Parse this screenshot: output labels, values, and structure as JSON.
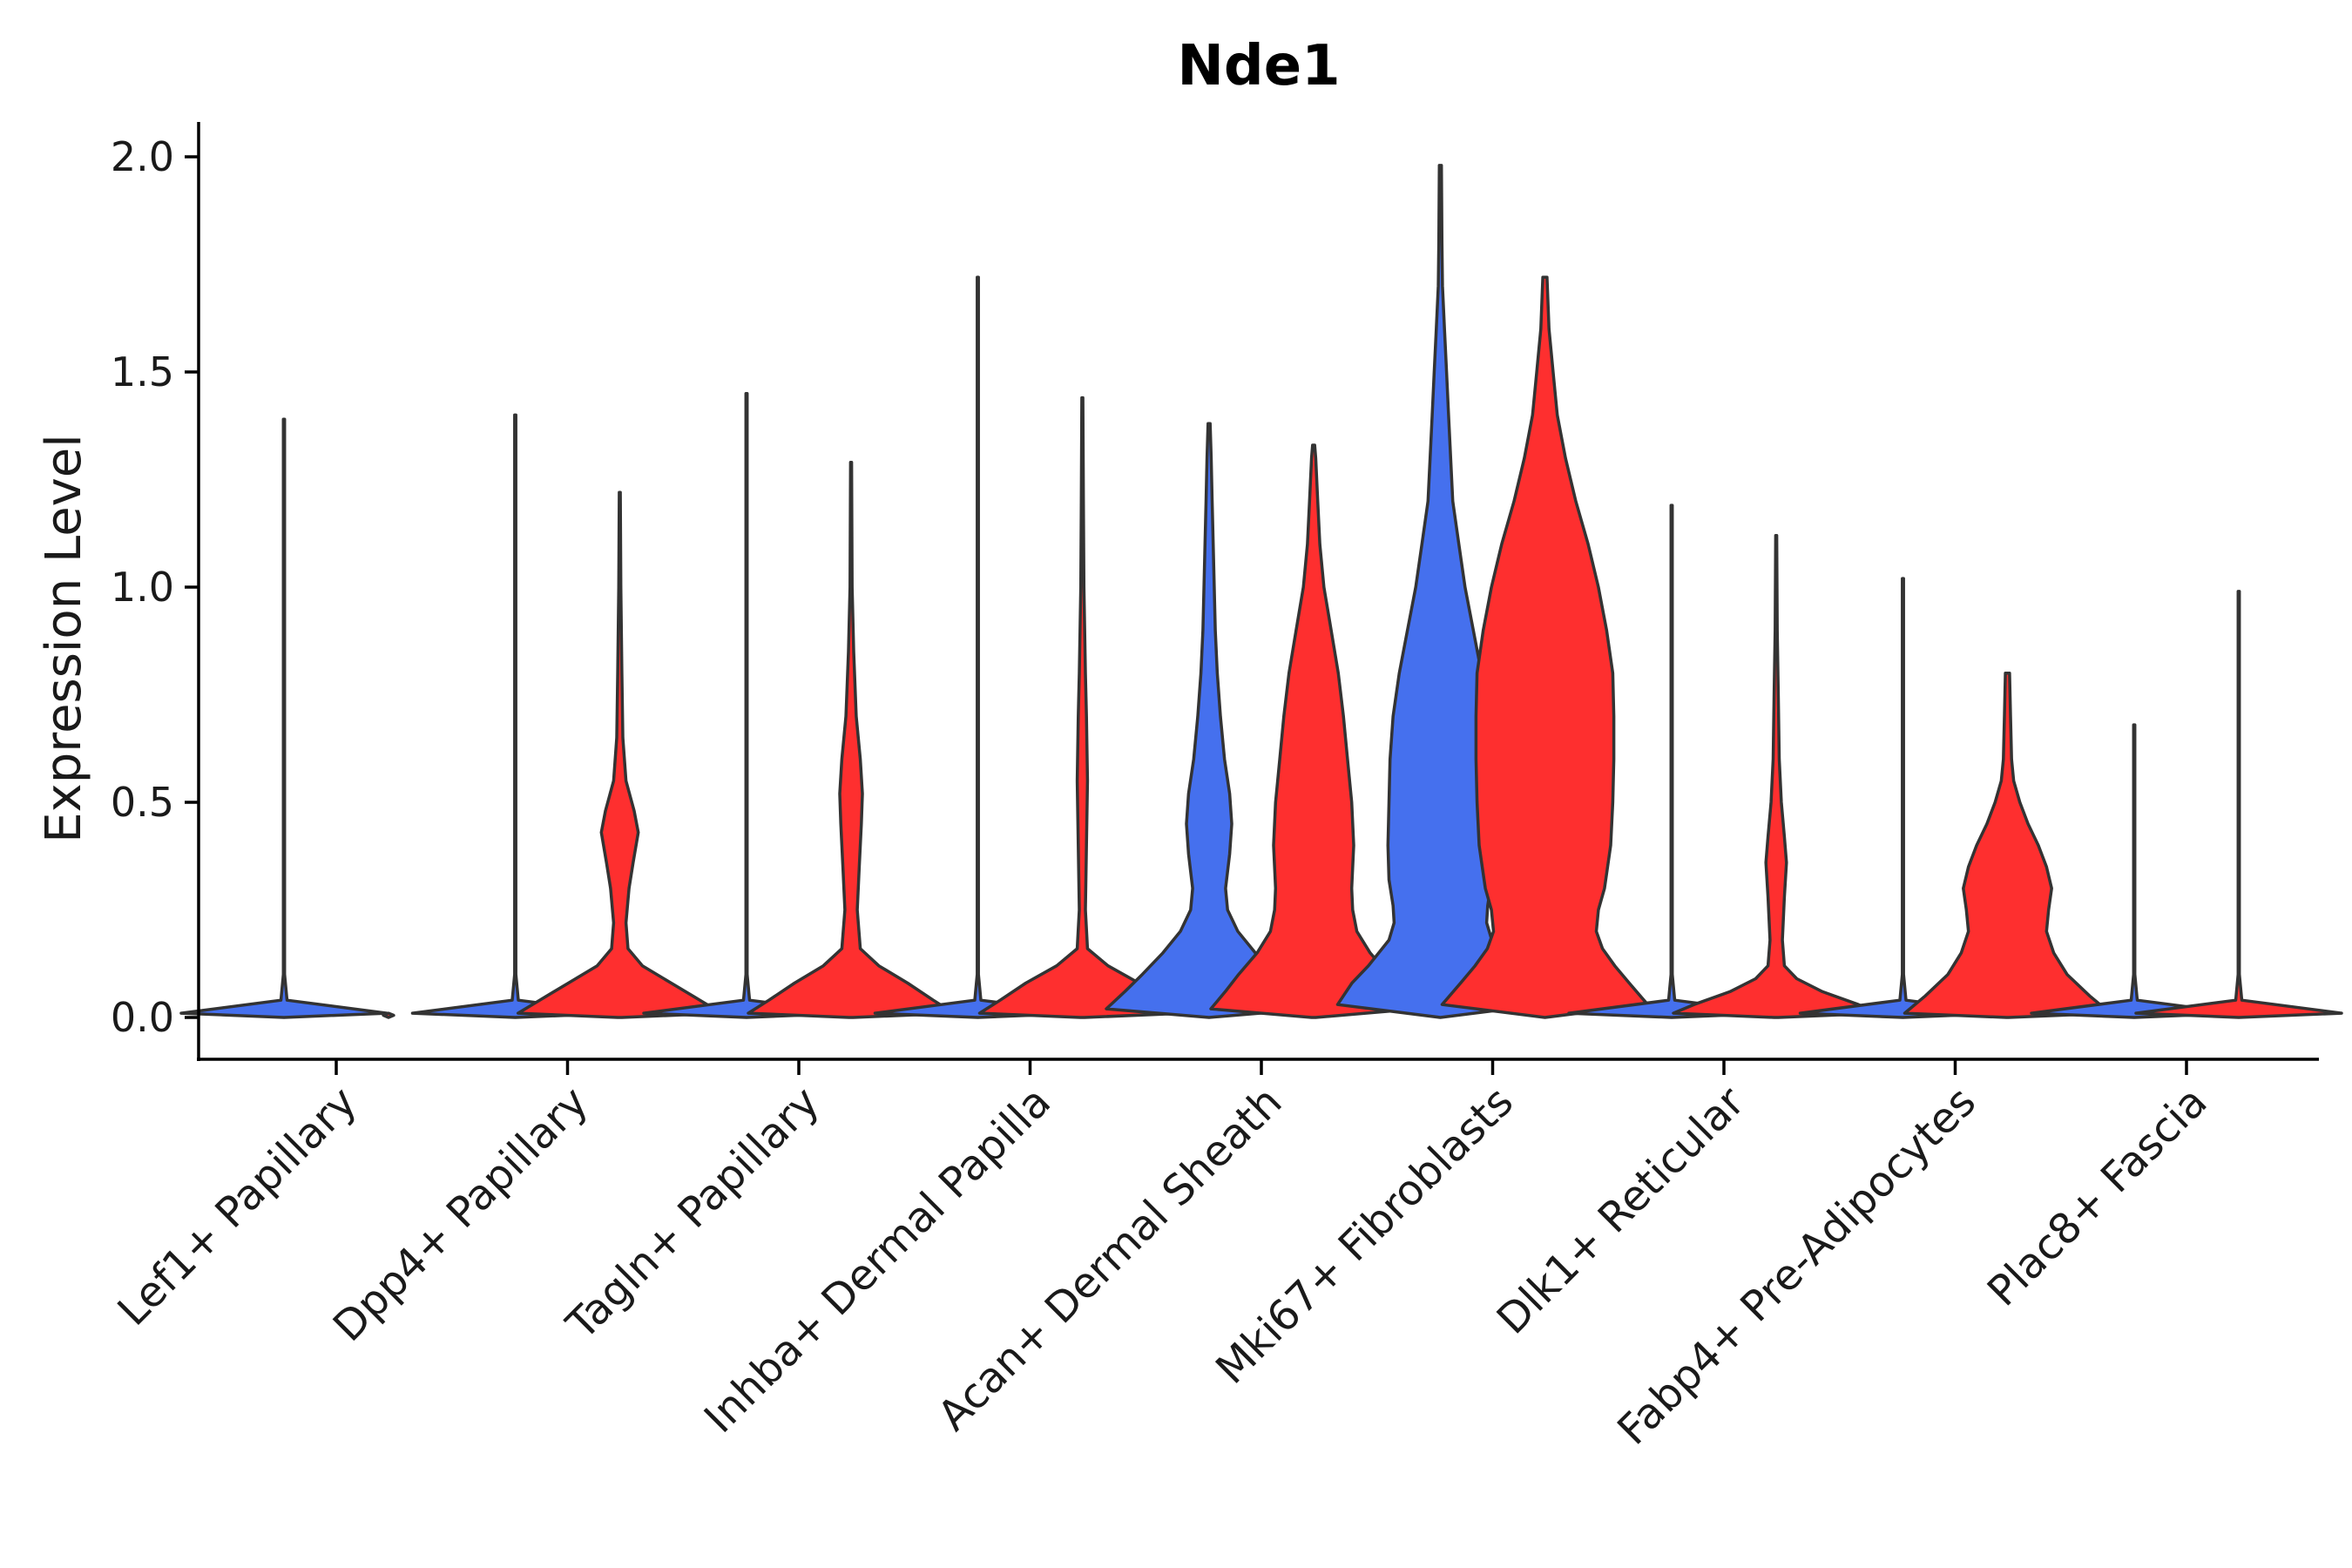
{
  "chart_data": {
    "type": "violin",
    "title": "Nde1",
    "xlabel": "",
    "ylabel": "Expression Level",
    "ylim": [
      -0.1,
      2.08
    ],
    "yticks": [
      0.0,
      0.5,
      1.0,
      1.5,
      2.0
    ],
    "ytick_labels": [
      "0.0",
      "0.5",
      "1.0",
      "1.5",
      "2.0"
    ],
    "grid": false,
    "legend": "none",
    "group_colors": {
      "blue": "#4570ee",
      "red": "#fe2f2f"
    },
    "categories": [
      "Lef1+ Papillary",
      "Dpp4+ Papillary",
      "Tagln+ Papillary",
      "Inhba+ Dermal Papilla",
      "Acan+ Dermal Sheath",
      "Mki67+ Fibroblasts",
      "Dlk1+ Reticular",
      "Fabp4+ Pre-Adipocytes",
      "Plac8+ Fascia"
    ],
    "violins": [
      {
        "category": "Lef1+ Papillary",
        "group": "blue",
        "color": "#4570ee",
        "max": 1.39,
        "profile": [
          [
            0,
            0.0
          ],
          [
            0.01,
            1.0
          ],
          [
            0.04,
            0.03
          ],
          [
            0.1,
            0.006
          ],
          [
            1.39,
            0.006
          ]
        ]
      },
      {
        "category": "Lef1+ Papillary",
        "group": "red",
        "color": "#fe2f2f",
        "max": 0.0,
        "profile": [
          [
            0,
            0.0
          ],
          [
            0.005,
            0.05
          ],
          [
            0.01,
            0.0
          ]
        ]
      },
      {
        "category": "Dpp4+ Papillary",
        "group": "blue",
        "color": "#4570ee",
        "max": 1.4,
        "profile": [
          [
            0,
            0.0
          ],
          [
            0.01,
            1.0
          ],
          [
            0.04,
            0.03
          ],
          [
            0.1,
            0.006
          ],
          [
            1.4,
            0.006
          ]
        ]
      },
      {
        "category": "Dpp4+ Papillary",
        "group": "red",
        "color": "#fe2f2f",
        "max": 1.22,
        "profile": [
          [
            0,
            0.02
          ],
          [
            0.01,
            0.99
          ],
          [
            0.04,
            0.78
          ],
          [
            0.08,
            0.5
          ],
          [
            0.12,
            0.22
          ],
          [
            0.16,
            0.08
          ],
          [
            0.22,
            0.06
          ],
          [
            0.3,
            0.09
          ],
          [
            0.36,
            0.13
          ],
          [
            0.43,
            0.18
          ],
          [
            0.48,
            0.14
          ],
          [
            0.55,
            0.06
          ],
          [
            0.65,
            0.03
          ],
          [
            0.8,
            0.02
          ],
          [
            1.0,
            0.01
          ],
          [
            1.22,
            0.005
          ]
        ]
      },
      {
        "category": "Tagln+ Papillary",
        "group": "blue",
        "color": "#4570ee",
        "max": 1.45,
        "profile": [
          [
            0,
            0.0
          ],
          [
            0.01,
            1.0
          ],
          [
            0.04,
            0.03
          ],
          [
            0.1,
            0.006
          ],
          [
            1.45,
            0.006
          ]
        ]
      },
      {
        "category": "Tagln+ Papillary",
        "group": "red",
        "color": "#fe2f2f",
        "max": 1.29,
        "profile": [
          [
            0,
            0.02
          ],
          [
            0.01,
            1.0
          ],
          [
            0.04,
            0.8
          ],
          [
            0.08,
            0.55
          ],
          [
            0.12,
            0.27
          ],
          [
            0.16,
            0.09
          ],
          [
            0.25,
            0.06
          ],
          [
            0.35,
            0.08
          ],
          [
            0.45,
            0.1
          ],
          [
            0.52,
            0.11
          ],
          [
            0.6,
            0.09
          ],
          [
            0.7,
            0.05
          ],
          [
            0.85,
            0.025
          ],
          [
            1.0,
            0.01
          ],
          [
            1.29,
            0.005
          ]
        ]
      },
      {
        "category": "Inhba+ Dermal Papilla",
        "group": "blue",
        "color": "#4570ee",
        "max": 1.72,
        "profile": [
          [
            0,
            0.0
          ],
          [
            0.01,
            1.0
          ],
          [
            0.04,
            0.03
          ],
          [
            0.1,
            0.006
          ],
          [
            1.72,
            0.006
          ]
        ]
      },
      {
        "category": "Inhba+ Dermal Papilla",
        "group": "red",
        "color": "#fe2f2f",
        "max": 1.44,
        "profile": [
          [
            0,
            0.02
          ],
          [
            0.01,
            1.0
          ],
          [
            0.04,
            0.8
          ],
          [
            0.08,
            0.55
          ],
          [
            0.12,
            0.25
          ],
          [
            0.16,
            0.05
          ],
          [
            0.25,
            0.03
          ],
          [
            0.4,
            0.04
          ],
          [
            0.55,
            0.05
          ],
          [
            0.7,
            0.04
          ],
          [
            0.8,
            0.03
          ],
          [
            1.0,
            0.015
          ],
          [
            1.2,
            0.01
          ],
          [
            1.44,
            0.005
          ]
        ]
      },
      {
        "category": "Acan+ Dermal Sheath",
        "group": "blue",
        "color": "#4570ee",
        "max": 1.38,
        "profile": [
          [
            0,
            0.0
          ],
          [
            0.02,
            1.0
          ],
          [
            0.06,
            0.82
          ],
          [
            0.1,
            0.65
          ],
          [
            0.15,
            0.45
          ],
          [
            0.2,
            0.28
          ],
          [
            0.25,
            0.18
          ],
          [
            0.3,
            0.16
          ],
          [
            0.38,
            0.2
          ],
          [
            0.45,
            0.22
          ],
          [
            0.52,
            0.2
          ],
          [
            0.6,
            0.15
          ],
          [
            0.7,
            0.11
          ],
          [
            0.8,
            0.08
          ],
          [
            0.9,
            0.06
          ],
          [
            1.0,
            0.05
          ],
          [
            1.1,
            0.04
          ],
          [
            1.2,
            0.03
          ],
          [
            1.3,
            0.02
          ],
          [
            1.38,
            0.01
          ]
        ]
      },
      {
        "category": "Acan+ Dermal Sheath",
        "group": "red",
        "color": "#fe2f2f",
        "max": 1.33,
        "profile": [
          [
            0,
            0.02
          ],
          [
            0.02,
            1.0
          ],
          [
            0.06,
            0.86
          ],
          [
            0.1,
            0.73
          ],
          [
            0.15,
            0.55
          ],
          [
            0.2,
            0.42
          ],
          [
            0.25,
            0.38
          ],
          [
            0.3,
            0.37
          ],
          [
            0.4,
            0.39
          ],
          [
            0.5,
            0.37
          ],
          [
            0.6,
            0.33
          ],
          [
            0.7,
            0.29
          ],
          [
            0.8,
            0.24
          ],
          [
            0.9,
            0.17
          ],
          [
            1.0,
            0.1
          ],
          [
            1.1,
            0.06
          ],
          [
            1.2,
            0.04
          ],
          [
            1.3,
            0.02
          ],
          [
            1.33,
            0.01
          ]
        ]
      },
      {
        "category": "Mki67+ Fibroblasts",
        "group": "blue",
        "color": "#4570ee",
        "max": 1.98,
        "profile": [
          [
            0,
            0.0
          ],
          [
            0.03,
            1.0
          ],
          [
            0.08,
            0.86
          ],
          [
            0.12,
            0.7
          ],
          [
            0.18,
            0.5
          ],
          [
            0.22,
            0.45
          ],
          [
            0.26,
            0.46
          ],
          [
            0.32,
            0.5
          ],
          [
            0.4,
            0.51
          ],
          [
            0.5,
            0.5
          ],
          [
            0.6,
            0.49
          ],
          [
            0.7,
            0.46
          ],
          [
            0.8,
            0.4
          ],
          [
            0.9,
            0.32
          ],
          [
            1.0,
            0.24
          ],
          [
            1.1,
            0.18
          ],
          [
            1.2,
            0.12
          ],
          [
            1.3,
            0.1
          ],
          [
            1.4,
            0.08
          ],
          [
            1.5,
            0.06
          ],
          [
            1.6,
            0.04
          ],
          [
            1.7,
            0.02
          ],
          [
            1.8,
            0.015
          ],
          [
            1.98,
            0.01
          ]
        ]
      },
      {
        "category": "Mki67+ Fibroblasts",
        "group": "red",
        "color": "#fe2f2f",
        "max": 1.72,
        "profile": [
          [
            0,
            0.0
          ],
          [
            0.03,
            1.0
          ],
          [
            0.08,
            0.82
          ],
          [
            0.12,
            0.68
          ],
          [
            0.16,
            0.56
          ],
          [
            0.2,
            0.5
          ],
          [
            0.25,
            0.52
          ],
          [
            0.3,
            0.58
          ],
          [
            0.4,
            0.64
          ],
          [
            0.5,
            0.66
          ],
          [
            0.6,
            0.67
          ],
          [
            0.7,
            0.67
          ],
          [
            0.8,
            0.66
          ],
          [
            0.9,
            0.6
          ],
          [
            1.0,
            0.52
          ],
          [
            1.1,
            0.42
          ],
          [
            1.2,
            0.3
          ],
          [
            1.3,
            0.2
          ],
          [
            1.4,
            0.12
          ],
          [
            1.5,
            0.08
          ],
          [
            1.6,
            0.04
          ],
          [
            1.72,
            0.02
          ]
        ]
      },
      {
        "category": "Dlk1+ Reticular",
        "group": "blue",
        "color": "#4570ee",
        "max": 1.19,
        "profile": [
          [
            0,
            0.0
          ],
          [
            0.01,
            1.0
          ],
          [
            0.04,
            0.03
          ],
          [
            0.1,
            0.006
          ],
          [
            1.19,
            0.006
          ]
        ]
      },
      {
        "category": "Dlk1+ Reticular",
        "group": "red",
        "color": "#fe2f2f",
        "max": 1.12,
        "profile": [
          [
            0,
            0.02
          ],
          [
            0.01,
            1.0
          ],
          [
            0.03,
            0.8
          ],
          [
            0.06,
            0.45
          ],
          [
            0.09,
            0.2
          ],
          [
            0.12,
            0.08
          ],
          [
            0.18,
            0.06
          ],
          [
            0.28,
            0.08
          ],
          [
            0.36,
            0.1
          ],
          [
            0.42,
            0.08
          ],
          [
            0.5,
            0.05
          ],
          [
            0.6,
            0.03
          ],
          [
            0.75,
            0.02
          ],
          [
            0.9,
            0.01
          ],
          [
            1.12,
            0.005
          ]
        ]
      },
      {
        "category": "Fabp4+ Pre-Adipocytes",
        "group": "blue",
        "color": "#4570ee",
        "max": 1.02,
        "profile": [
          [
            0,
            0.0
          ],
          [
            0.01,
            1.0
          ],
          [
            0.04,
            0.03
          ],
          [
            0.1,
            0.006
          ],
          [
            1.02,
            0.006
          ]
        ]
      },
      {
        "category": "Fabp4+ Pre-Adipocytes",
        "group": "red",
        "color": "#fe2f2f",
        "max": 0.8,
        "profile": [
          [
            0,
            0.01
          ],
          [
            0.01,
            1.0
          ],
          [
            0.05,
            0.8
          ],
          [
            0.1,
            0.58
          ],
          [
            0.15,
            0.45
          ],
          [
            0.2,
            0.38
          ],
          [
            0.25,
            0.4
          ],
          [
            0.3,
            0.43
          ],
          [
            0.35,
            0.38
          ],
          [
            0.4,
            0.3
          ],
          [
            0.45,
            0.2
          ],
          [
            0.5,
            0.12
          ],
          [
            0.55,
            0.06
          ],
          [
            0.6,
            0.04
          ],
          [
            0.7,
            0.03
          ],
          [
            0.8,
            0.02
          ]
        ]
      },
      {
        "category": "Plac8+ Fascia",
        "group": "blue",
        "color": "#4570ee",
        "max": 0.68,
        "profile": [
          [
            0,
            0.0
          ],
          [
            0.01,
            1.0
          ],
          [
            0.04,
            0.03
          ],
          [
            0.1,
            0.006
          ],
          [
            0.68,
            0.006
          ]
        ]
      },
      {
        "category": "Plac8+ Fascia",
        "group": "red",
        "color": "#fe2f2f",
        "max": 0.99,
        "profile": [
          [
            0,
            0.0
          ],
          [
            0.01,
            1.0
          ],
          [
            0.04,
            0.03
          ],
          [
            0.1,
            0.006
          ],
          [
            0.99,
            0.006
          ]
        ]
      }
    ]
  }
}
